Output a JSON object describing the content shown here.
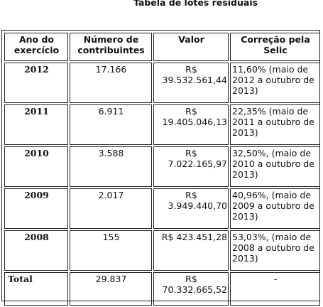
{
  "title": "Tabela de lotes residuais",
  "columns": [
    "Ano do exercício",
    "Número de contribuintes",
    "Valor",
    "Correção pela Selic"
  ],
  "rows": [
    {
      "year": "2012",
      "contrib": "17.166",
      "valor_currency": "R$",
      "valor_amount": "39.532.561,44",
      "correcao": "11,60% (maio de 2012 a outubro de 2013)"
    },
    {
      "year": "2011",
      "contrib": "6.911",
      "valor_currency": "R$",
      "valor_amount": "19.405.046,13",
      "correcao": "22,35% (maio de 2011 a outubro de 2013)"
    },
    {
      "year": "2010",
      "contrib": "3.588",
      "valor_currency": "R$",
      "valor_amount": "7.022.165,97",
      "correcao": "32,50%, (maio de 2010 a outubro de 2013)"
    },
    {
      "year": "2009",
      "contrib": "2.017",
      "valor_currency": "R$",
      "valor_amount": "3.949.440,70",
      "correcao": "40,96%, (maio de 2009 a outubro de 2013)"
    },
    {
      "year": "2008",
      "contrib": "155",
      "valor_currency": "R$",
      "valor_amount": "423.451,28",
      "correcao": "53,03%, (maio de 2008 a outubro de 2013)"
    }
  ],
  "total": {
    "label": "Total",
    "contrib": "29.837",
    "valor_currency": "R$",
    "valor_amount": "70.332.665,52",
    "correcao": "-"
  }
}
